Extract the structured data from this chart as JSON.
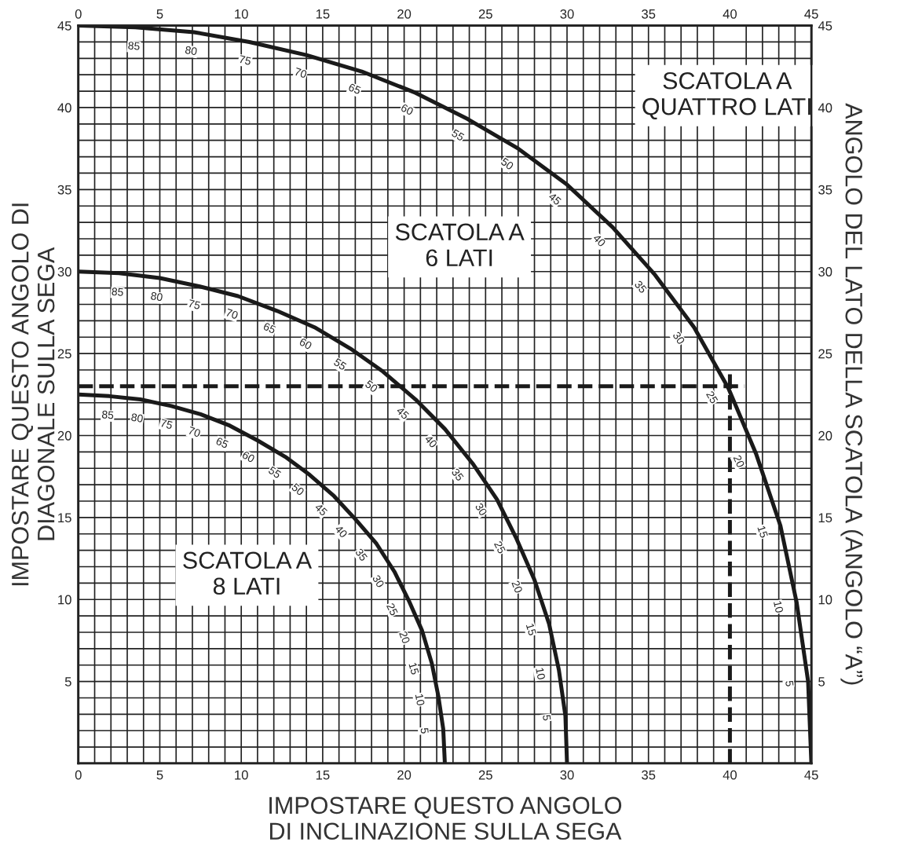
{
  "chart_data": {
    "type": "line",
    "xlabel": "IMPOSTARE QUESTO ANGOLO\nDI INCLINAZIONE SULLA SEGA",
    "ylabel": "IMPOSTARE QUESTO ANGOLO DI\nDIAGONALE SULLA SEGA",
    "y2label": "ANGOLO DEL LATO DELLA SCATOLA (ANGOLO “A”)",
    "series": [
      {
        "name": "SCATOLA A\nQUATTRO LATI",
        "color": "#1a1a1a",
        "x": [
          45,
          44.8,
          44.1,
          43.1,
          41.6,
          39.9,
          37.8,
          35.4,
          32.8,
          30,
          27.0,
          23.9,
          20.7,
          17.4,
          14.0,
          10.5,
          7.1,
          3.5,
          0
        ],
        "values": [
          0,
          5.0,
          9.8,
          14.5,
          18.9,
          22.9,
          26.6,
          29.8,
          32.7,
          35.3,
          37.5,
          39.3,
          40.9,
          42.2,
          43.2,
          44.0,
          44.6,
          44.9,
          45
        ]
      },
      {
        "name": "SCATOLA A\n6 LATI",
        "color": "#1a1a1a",
        "x": [
          30,
          29.9,
          29.5,
          28.9,
          28.0,
          26.9,
          25.7,
          24.2,
          22.5,
          20.7,
          18.7,
          16.7,
          14.5,
          12.2,
          9.8,
          7.4,
          5.0,
          2.5,
          0
        ],
        "values": [
          0,
          2.9,
          5.7,
          8.5,
          11.2,
          13.7,
          16.1,
          18.3,
          20.4,
          22.2,
          23.9,
          25.3,
          26.6,
          27.6,
          28.5,
          29.1,
          29.6,
          29.9,
          30
        ]
      },
      {
        "name": "SCATOLA A\n8 LATI",
        "color": "#1a1a1a",
        "x": [
          22.5,
          22.4,
          22.1,
          21.7,
          21.1,
          20.3,
          19.4,
          18.3,
          17.0,
          15.7,
          14.2,
          12.7,
          11.0,
          9.3,
          7.5,
          5.7,
          3.8,
          1.9,
          0
        ],
        "values": [
          0,
          2.1,
          4.1,
          6.1,
          8.1,
          9.9,
          11.7,
          13.4,
          14.9,
          16.3,
          17.6,
          18.7,
          19.7,
          20.6,
          21.3,
          21.8,
          22.2,
          22.4,
          22.5
        ]
      }
    ],
    "annotations": [
      {
        "text": "5",
        "x": 44.8,
        "y": 5.0
      },
      {
        "text": "10",
        "x": 44.1,
        "y": 9.8
      },
      {
        "text": "15",
        "x": 43.1,
        "y": 14.5
      },
      {
        "text": "20",
        "x": 41.6,
        "y": 18.9
      },
      {
        "text": "25",
        "x": 39.9,
        "y": 22.9
      },
      {
        "text": "30",
        "x": 37.8,
        "y": 26.6
      },
      {
        "text": "35",
        "x": 35.4,
        "y": 29.8
      },
      {
        "text": "40",
        "x": 32.8,
        "y": 32.7
      },
      {
        "text": "45",
        "x": 30,
        "y": 35.3
      },
      {
        "text": "50",
        "x": 27.0,
        "y": 37.5
      },
      {
        "text": "55",
        "x": 23.9,
        "y": 39.3
      },
      {
        "text": "60",
        "x": 20.7,
        "y": 40.9
      },
      {
        "text": "65",
        "x": 17.4,
        "y": 42.2
      },
      {
        "text": "70",
        "x": 14.0,
        "y": 43.2
      },
      {
        "text": "75",
        "x": 10.5,
        "y": 44.0
      },
      {
        "text": "80",
        "x": 7.1,
        "y": 44.6
      },
      {
        "text": "85",
        "x": 3.5,
        "y": 44.9
      },
      {
        "text": "5",
        "x": 29.9,
        "y": 2.9
      },
      {
        "text": "10",
        "x": 29.5,
        "y": 5.7
      },
      {
        "text": "15",
        "x": 28.9,
        "y": 8.5
      },
      {
        "text": "20",
        "x": 28.0,
        "y": 11.2
      },
      {
        "text": "25",
        "x": 26.9,
        "y": 13.7
      },
      {
        "text": "30",
        "x": 25.7,
        "y": 16.1
      },
      {
        "text": "35",
        "x": 24.2,
        "y": 18.3
      },
      {
        "text": "40",
        "x": 22.5,
        "y": 20.4
      },
      {
        "text": "45",
        "x": 20.7,
        "y": 22.2
      },
      {
        "text": "50",
        "x": 18.7,
        "y": 23.9
      },
      {
        "text": "55",
        "x": 16.7,
        "y": 25.3
      },
      {
        "text": "60",
        "x": 14.5,
        "y": 26.6
      },
      {
        "text": "65",
        "x": 12.2,
        "y": 27.6
      },
      {
        "text": "70",
        "x": 9.8,
        "y": 28.5
      },
      {
        "text": "75",
        "x": 7.4,
        "y": 29.1
      },
      {
        "text": "80",
        "x": 5.0,
        "y": 29.6
      },
      {
        "text": "85",
        "x": 2.5,
        "y": 29.9
      },
      {
        "text": "5",
        "x": 22.4,
        "y": 2.1
      },
      {
        "text": "10",
        "x": 22.1,
        "y": 4.1
      },
      {
        "text": "15",
        "x": 21.7,
        "y": 6.1
      },
      {
        "text": "20",
        "x": 21.1,
        "y": 8.1
      },
      {
        "text": "25",
        "x": 20.3,
        "y": 9.9
      },
      {
        "text": "30",
        "x": 19.4,
        "y": 11.7
      },
      {
        "text": "35",
        "x": 18.3,
        "y": 13.4
      },
      {
        "text": "40",
        "x": 17.0,
        "y": 14.9
      },
      {
        "text": "45",
        "x": 15.7,
        "y": 16.3
      },
      {
        "text": "50",
        "x": 14.2,
        "y": 17.6
      },
      {
        "text": "55",
        "x": 12.7,
        "y": 18.7
      },
      {
        "text": "60",
        "x": 11.0,
        "y": 19.7
      },
      {
        "text": "65",
        "x": 9.3,
        "y": 20.6
      },
      {
        "text": "70",
        "x": 7.5,
        "y": 21.3
      },
      {
        "text": "75",
        "x": 5.7,
        "y": 21.8
      },
      {
        "text": "80",
        "x": 3.8,
        "y": 22.2
      },
      {
        "text": "85",
        "x": 1.9,
        "y": 22.4
      }
    ],
    "ref_lines": [
      {
        "axis": "x",
        "value": 40,
        "line_style": "dashed",
        "color": "#1a1a1a"
      },
      {
        "axis": "y",
        "value": 23,
        "line_style": "dashed",
        "color": "#1a1a1a"
      }
    ],
    "xlim": [
      0,
      45
    ],
    "ylim": [
      0,
      45
    ],
    "x2lim": [
      0,
      45
    ],
    "y2lim": [
      0,
      45
    ],
    "xticks": [
      0,
      {
        "value": 1,
        "label": null
      },
      {
        "value": 2,
        "label": null
      },
      {
        "value": 3,
        "label": null
      },
      {
        "value": 4,
        "label": null
      },
      5,
      {
        "value": 6,
        "label": null
      },
      {
        "value": 7,
        "label": null
      },
      {
        "value": 8,
        "label": null
      },
      {
        "value": 9,
        "label": null
      },
      10,
      {
        "value": 11,
        "label": null
      },
      {
        "value": 12,
        "label": null
      },
      {
        "value": 13,
        "label": null
      },
      {
        "value": 14,
        "label": null
      },
      15,
      {
        "value": 16,
        "label": null
      },
      {
        "value": 17,
        "label": null
      },
      {
        "value": 18,
        "label": null
      },
      {
        "value": 19,
        "label": null
      },
      20,
      {
        "value": 21,
        "label": null
      },
      {
        "value": 22,
        "label": null
      },
      {
        "value": 23,
        "label": null
      },
      {
        "value": 24,
        "label": null
      },
      25,
      {
        "value": 26,
        "label": null
      },
      {
        "value": 27,
        "label": null
      },
      {
        "value": 28,
        "label": null
      },
      {
        "value": 29,
        "label": null
      },
      30,
      {
        "value": 31,
        "label": null
      },
      {
        "value": 32,
        "label": null
      },
      {
        "value": 33,
        "label": null
      },
      {
        "value": 34,
        "label": null
      },
      35,
      {
        "value": 36,
        "label": null
      },
      {
        "value": 37,
        "label": null
      },
      {
        "value": 38,
        "label": null
      },
      {
        "value": 39,
        "label": null
      },
      40,
      {
        "value": 41,
        "label": null
      },
      {
        "value": 42,
        "label": null
      },
      {
        "value": 43,
        "label": null
      },
      {
        "value": 44,
        "label": null
      },
      45
    ],
    "yticks": [
      {
        "value": 0,
        "label": null
      },
      {
        "value": 1,
        "label": null
      },
      {
        "value": 2,
        "label": null
      },
      {
        "value": 3,
        "label": null
      },
      {
        "value": 4,
        "label": null
      },
      5,
      {
        "value": 6,
        "label": null
      },
      {
        "value": 7,
        "label": null
      },
      {
        "value": 8,
        "label": null
      },
      {
        "value": 9,
        "label": null
      },
      10,
      {
        "value": 11,
        "label": null
      },
      {
        "value": 12,
        "label": null
      },
      {
        "value": 13,
        "label": null
      },
      {
        "value": 14,
        "label": null
      },
      15,
      {
        "value": 16,
        "label": null
      },
      {
        "value": 17,
        "label": null
      },
      {
        "value": 18,
        "label": null
      },
      {
        "value": 19,
        "label": null
      },
      20,
      {
        "value": 21,
        "label": null
      },
      {
        "value": 22,
        "label": null
      },
      {
        "value": 23,
        "label": null
      },
      {
        "value": 24,
        "label": null
      },
      25,
      {
        "value": 26,
        "label": null
      },
      {
        "value": 27,
        "label": null
      },
      {
        "value": 28,
        "label": null
      },
      {
        "value": 29,
        "label": null
      },
      30,
      {
        "value": 31,
        "label": null
      },
      {
        "value": 32,
        "label": null
      },
      {
        "value": 33,
        "label": null
      },
      {
        "value": 34,
        "label": null
      },
      35,
      {
        "value": 36,
        "label": null
      },
      {
        "value": 37,
        "label": null
      },
      {
        "value": 38,
        "label": null
      },
      {
        "value": 39,
        "label": null
      },
      40,
      {
        "value": 41,
        "label": null
      },
      {
        "value": 42,
        "label": null
      },
      {
        "value": 43,
        "label": null
      },
      {
        "value": 44,
        "label": null
      },
      45
    ],
    "x2ticks": [
      0,
      5,
      10,
      15,
      20,
      25,
      30,
      35,
      40,
      45
    ],
    "y2ticks": [
      5,
      10,
      15,
      20,
      25,
      30,
      35,
      40,
      45
    ],
    "grid": true,
    "marker": "none",
    "line_style": "solid"
  }
}
